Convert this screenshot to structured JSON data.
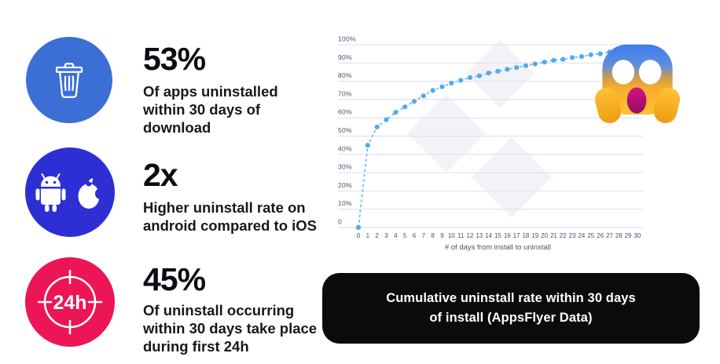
{
  "stats": [
    {
      "value": "53%",
      "text": "Of apps uninstalled\nwithin 30 days of\ndownload",
      "icon": "trash-icon",
      "circle_color": "#3b6fd6"
    },
    {
      "value": "2x",
      "text": "Higher uninstall rate on\nandroid compared to iOS",
      "icon": "android-apple-icon",
      "circle_color": "#2d2fd5"
    },
    {
      "value": "45%",
      "text": "Of uninstall occurring\nwithin 30 days take place\nduring first 24h",
      "icon": "24h-clock-icon",
      "icon_text": "24h",
      "circle_color": "#ec1555"
    }
  ],
  "chart_data": {
    "type": "line",
    "style": "dotted",
    "x": [
      0,
      1,
      2,
      3,
      4,
      5,
      6,
      7,
      8,
      9,
      10,
      11,
      12,
      13,
      14,
      15,
      16,
      17,
      18,
      19,
      20,
      21,
      22,
      23,
      24,
      25,
      26,
      27,
      28,
      29,
      30
    ],
    "values": [
      0,
      45,
      55,
      59,
      63,
      66,
      69,
      72,
      75,
      77,
      79,
      80.5,
      82,
      83,
      84.5,
      85.5,
      86.5,
      87.5,
      88.5,
      89.5,
      90.5,
      91.5,
      92,
      93,
      93.5,
      94.5,
      95,
      96,
      96.5,
      97.5,
      98
    ],
    "xlabel": "# of days from install to uninstall",
    "ylim": [
      0,
      100
    ],
    "ytick_step": 10,
    "ytick_labels": [
      "0",
      "10%",
      "20%",
      "30%",
      "40%",
      "50%",
      "60%",
      "70%",
      "80%",
      "90%",
      "100%"
    ],
    "grid": true,
    "legend": "none",
    "line_color": "#74c0f3",
    "dot_color": "#50abee",
    "grid_color": "#dadcef",
    "axis_text_color": "#4c5066"
  },
  "caption": {
    "text": "Cumulative uninstall rate within 30 days\nof install (AppsFlyer Data)"
  },
  "emoji": {
    "name": "face-screaming-in-fear"
  }
}
